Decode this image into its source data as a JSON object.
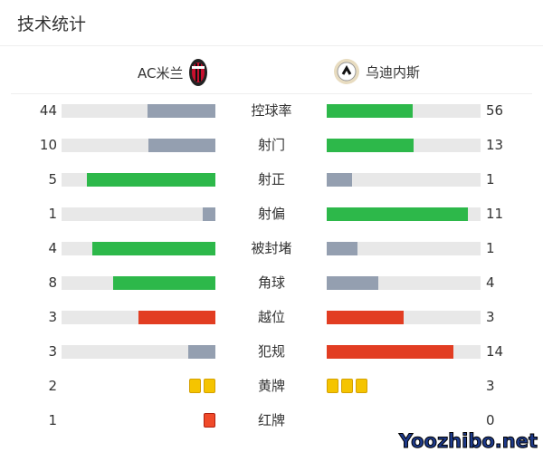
{
  "title": "技术统计",
  "home": {
    "name": "AC米兰",
    "logo": "ac-milan-crest"
  },
  "away": {
    "name": "乌迪内斯",
    "logo": "udinese-crest"
  },
  "colors": {
    "green": "#2db84a",
    "gray": "#949fb0",
    "red": "#e23d22",
    "track": "#e8e8e8",
    "yellow": "#f5c400",
    "redcard": "#f04a2a"
  },
  "stats": [
    {
      "label": "控球率",
      "home": "44",
      "away": "56",
      "hv": 44,
      "av": 56,
      "hc": "gray",
      "ac": "green"
    },
    {
      "label": "射门",
      "home": "10",
      "away": "13",
      "hv": 10,
      "av": 13,
      "hc": "gray",
      "ac": "green"
    },
    {
      "label": "射正",
      "home": "5",
      "away": "1",
      "hv": 5,
      "av": 1,
      "hc": "green",
      "ac": "gray"
    },
    {
      "label": "射偏",
      "home": "1",
      "away": "11",
      "hv": 1,
      "av": 11,
      "hc": "gray",
      "ac": "green"
    },
    {
      "label": "被封堵",
      "home": "4",
      "away": "1",
      "hv": 4,
      "av": 1,
      "hc": "green",
      "ac": "gray"
    },
    {
      "label": "角球",
      "home": "8",
      "away": "4",
      "hv": 8,
      "av": 4,
      "hc": "green",
      "ac": "gray"
    },
    {
      "label": "越位",
      "home": "3",
      "away": "3",
      "hv": 3,
      "av": 3,
      "hc": "red",
      "ac": "red"
    },
    {
      "label": "犯规",
      "home": "3",
      "away": "14",
      "hv": 3,
      "av": 14,
      "hc": "gray",
      "ac": "red"
    }
  ],
  "cards": [
    {
      "label": "黄牌",
      "home": "2",
      "away": "3",
      "hv": 2,
      "av": 3,
      "color": "yellow"
    },
    {
      "label": "红牌",
      "home": "1",
      "away": "0",
      "hv": 1,
      "av": 0,
      "color": "redcard"
    }
  ],
  "watermark": "Yoozhibo.net"
}
